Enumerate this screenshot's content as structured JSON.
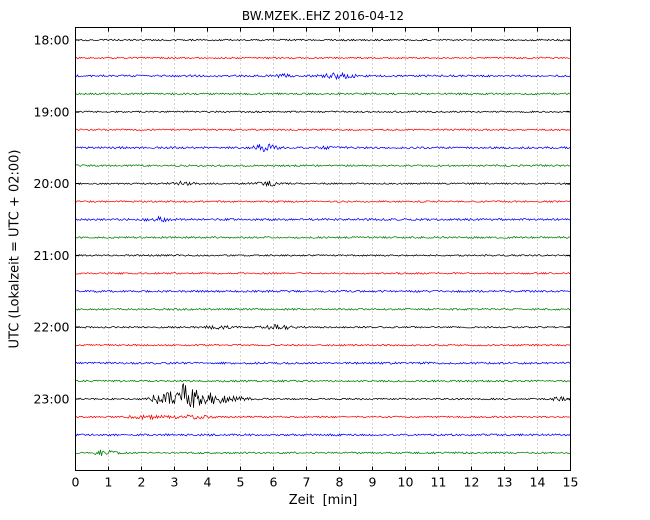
{
  "figure": {
    "title": "BW.MZEK..EHZ 2016-04-12",
    "xlabel": "Zeit  [min]",
    "ylabel": "UTC (Lokalzeit = UTC + 02:00)"
  },
  "chart_data": {
    "type": "line",
    "subtype": "helicorder-dayplot",
    "title": "BW.MZEK..EHZ 2016-04-12",
    "xlabel": "Zeit  [min]",
    "ylabel": "UTC (Lokalzeit = UTC + 02:00)",
    "xlim": [
      0,
      15
    ],
    "x_ticks": [
      "0",
      "1",
      "2",
      "3",
      "4",
      "5",
      "6",
      "7",
      "8",
      "9",
      "10",
      "11",
      "12",
      "13",
      "14",
      "15"
    ],
    "y_ticks": [
      "18:00",
      "19:00",
      "20:00",
      "21:00",
      "22:00",
      "23:00"
    ],
    "minutes_per_row": 15,
    "grid": true,
    "colors": {
      "frame": "#000000",
      "grid": "#999999",
      "black": "#000000",
      "red": "#ff0000",
      "blue": "#0000ff",
      "green": "#008000"
    },
    "rows": [
      {
        "label": "18:00",
        "color": "black",
        "noise": 0.8,
        "events": []
      },
      {
        "label": "",
        "color": "red",
        "noise": 0.8,
        "events": []
      },
      {
        "label": "",
        "color": "blue",
        "noise": 1.0,
        "events": [
          {
            "t": 8.0,
            "amp": 2.5,
            "w": 0.45
          },
          {
            "t": 6.3,
            "amp": 1.2,
            "w": 0.3
          }
        ]
      },
      {
        "label": "",
        "color": "green",
        "noise": 0.9,
        "events": []
      },
      {
        "label": "19:00",
        "color": "black",
        "noise": 0.8,
        "events": []
      },
      {
        "label": "",
        "color": "red",
        "noise": 0.8,
        "events": []
      },
      {
        "label": "",
        "color": "blue",
        "noise": 1.0,
        "events": [
          {
            "t": 5.75,
            "amp": 3.5,
            "w": 0.3
          },
          {
            "t": 7.6,
            "amp": 1.2,
            "w": 0.25
          }
        ]
      },
      {
        "label": "",
        "color": "green",
        "noise": 0.9,
        "events": []
      },
      {
        "label": "20:00",
        "color": "black",
        "noise": 0.8,
        "events": [
          {
            "t": 3.2,
            "amp": 1.8,
            "w": 0.3
          },
          {
            "t": 5.8,
            "amp": 2.2,
            "w": 0.35
          }
        ]
      },
      {
        "label": "",
        "color": "red",
        "noise": 0.8,
        "events": []
      },
      {
        "label": "",
        "color": "blue",
        "noise": 1.0,
        "events": [
          {
            "t": 2.5,
            "amp": 2.2,
            "w": 0.35
          }
        ]
      },
      {
        "label": "",
        "color": "green",
        "noise": 0.9,
        "events": []
      },
      {
        "label": "21:00",
        "color": "black",
        "noise": 0.8,
        "events": []
      },
      {
        "label": "",
        "color": "red",
        "noise": 0.8,
        "events": []
      },
      {
        "label": "",
        "color": "blue",
        "noise": 1.0,
        "events": []
      },
      {
        "label": "",
        "color": "green",
        "noise": 0.9,
        "events": []
      },
      {
        "label": "22:00",
        "color": "black",
        "noise": 0.8,
        "events": [
          {
            "t": 4.3,
            "amp": 1.6,
            "w": 0.4
          },
          {
            "t": 6.15,
            "amp": 2.0,
            "w": 0.45
          }
        ]
      },
      {
        "label": "",
        "color": "red",
        "noise": 0.8,
        "events": []
      },
      {
        "label": "",
        "color": "blue",
        "noise": 1.0,
        "events": []
      },
      {
        "label": "",
        "color": "green",
        "noise": 0.9,
        "events": []
      },
      {
        "label": "23:00",
        "color": "black",
        "noise": 0.8,
        "events": [
          {
            "t": 2.45,
            "amp": 5,
            "w": 0.18
          },
          {
            "t": 2.8,
            "amp": 4,
            "w": 0.25
          },
          {
            "t": 3.3,
            "amp": 15,
            "w": 0.35
          },
          {
            "t": 3.9,
            "amp": 6,
            "w": 0.4
          },
          {
            "t": 4.6,
            "amp": 2.5,
            "w": 0.6
          },
          {
            "t": 14.65,
            "amp": 2.0,
            "w": 0.2
          }
        ]
      },
      {
        "label": "",
        "color": "red",
        "noise": 0.8,
        "events": [
          {
            "t": 2.2,
            "amp": 1.8,
            "w": 0.5
          },
          {
            "t": 3.5,
            "amp": 1.5,
            "w": 0.6
          }
        ]
      },
      {
        "label": "",
        "color": "blue",
        "noise": 1.0,
        "events": []
      },
      {
        "label": "",
        "color": "green",
        "noise": 0.9,
        "events": [
          {
            "t": 0.85,
            "amp": 2.5,
            "w": 0.3
          }
        ]
      }
    ]
  }
}
